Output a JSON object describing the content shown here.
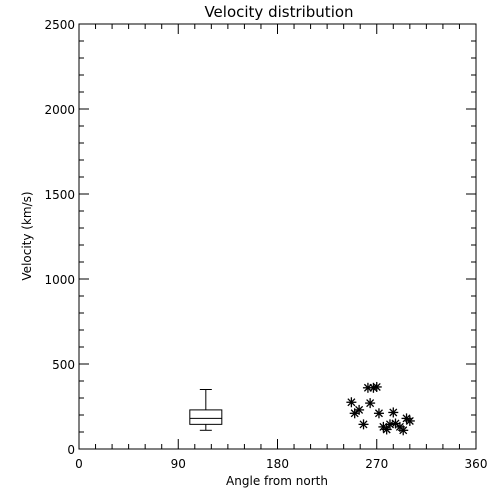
{
  "chart_data": {
    "type": "scatter",
    "title": "Velocity distribution",
    "xlabel": "Angle from north",
    "ylabel": "Velocity (km/s)",
    "xlim": [
      0,
      360
    ],
    "ylim": [
      0,
      2500
    ],
    "xticks": [
      0,
      90,
      180,
      270,
      360
    ],
    "yticks": [
      0,
      500,
      1000,
      1500,
      2000,
      2500
    ],
    "grid": false,
    "marker": "asterisk",
    "boxplot": {
      "x": 115,
      "min": 110,
      "q1": 145,
      "median": 180,
      "q3": 230,
      "max": 350
    },
    "points": [
      {
        "x": 247,
        "y": 275
      },
      {
        "x": 250,
        "y": 210
      },
      {
        "x": 254,
        "y": 230
      },
      {
        "x": 258,
        "y": 145
      },
      {
        "x": 262,
        "y": 360
      },
      {
        "x": 264,
        "y": 270
      },
      {
        "x": 267,
        "y": 360
      },
      {
        "x": 270,
        "y": 365
      },
      {
        "x": 272,
        "y": 210
      },
      {
        "x": 276,
        "y": 130
      },
      {
        "x": 279,
        "y": 115
      },
      {
        "x": 282,
        "y": 145
      },
      {
        "x": 285,
        "y": 215
      },
      {
        "x": 287,
        "y": 150
      },
      {
        "x": 291,
        "y": 130
      },
      {
        "x": 294,
        "y": 110
      },
      {
        "x": 297,
        "y": 180
      },
      {
        "x": 300,
        "y": 165
      }
    ]
  }
}
